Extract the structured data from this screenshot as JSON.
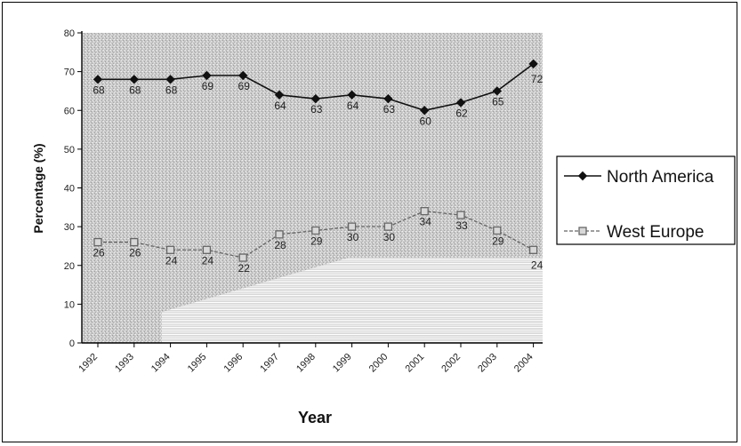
{
  "chart_data": {
    "type": "line",
    "title": "",
    "xlabel": "Year",
    "ylabel": "Percentage (%)",
    "categories": [
      "1992",
      "1993",
      "1994",
      "1995",
      "1996",
      "1997",
      "1998",
      "1999",
      "2000",
      "2001",
      "2002",
      "2003",
      "2004"
    ],
    "ylim": [
      0,
      80
    ],
    "yticks": [
      0,
      10,
      20,
      30,
      40,
      50,
      60,
      70,
      80
    ],
    "grid": false,
    "legend_position": "right",
    "series": [
      {
        "name": "North America",
        "values": [
          68,
          68,
          68,
          69,
          69,
          64,
          63,
          64,
          63,
          60,
          62,
          65,
          72
        ],
        "color": "#111111",
        "marker": "diamond"
      },
      {
        "name": "West Europe",
        "values": [
          26,
          26,
          24,
          24,
          22,
          28,
          29,
          30,
          30,
          34,
          33,
          29,
          24
        ],
        "color": "#666666",
        "marker": "square"
      }
    ]
  }
}
